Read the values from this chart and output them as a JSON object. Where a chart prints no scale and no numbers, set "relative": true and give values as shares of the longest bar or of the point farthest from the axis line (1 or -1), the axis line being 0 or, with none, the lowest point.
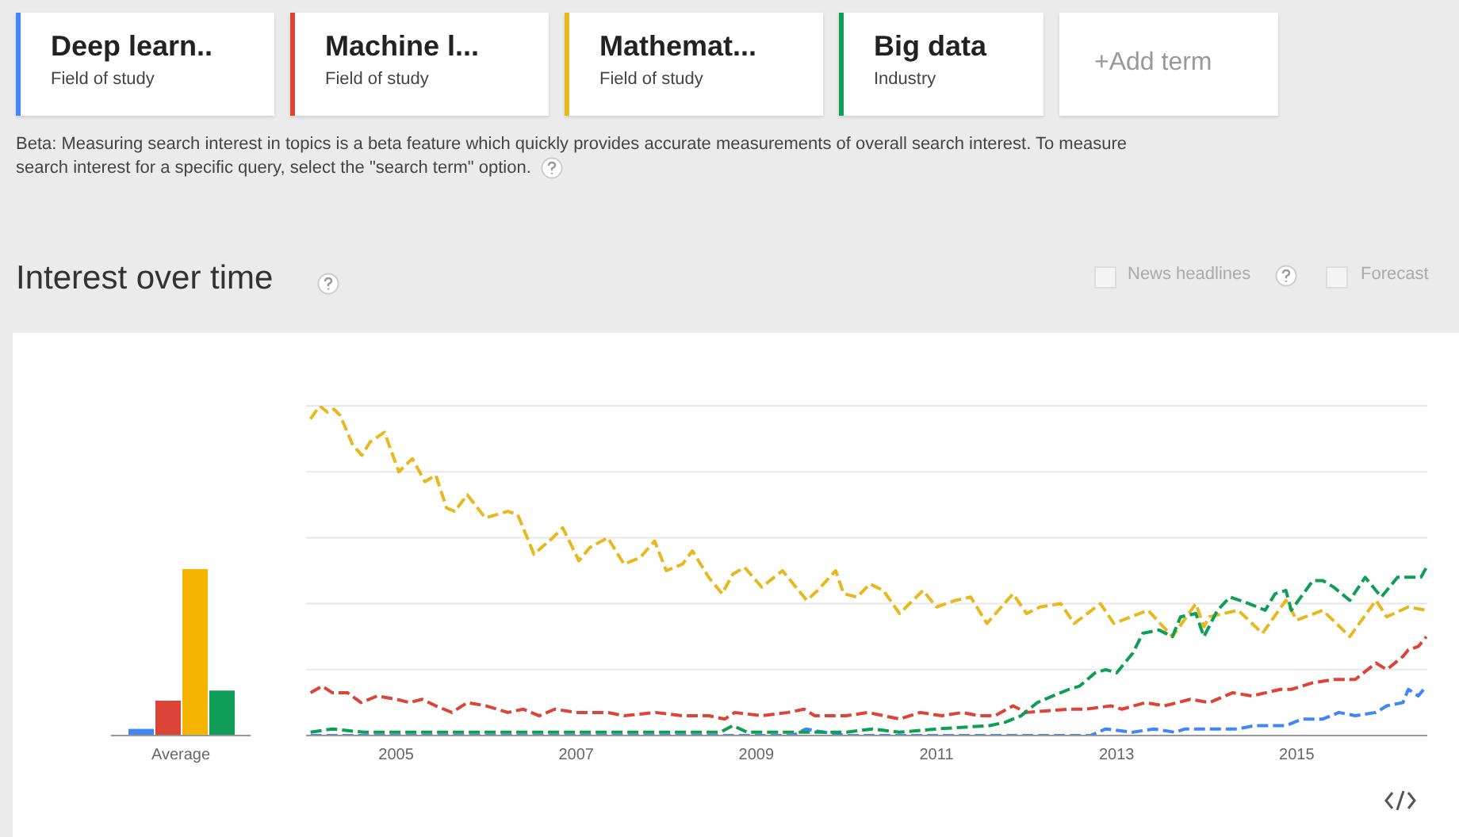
{
  "chart_data": [
    {
      "type": "other",
      "annotations": [
        "Deep learn..",
        "Field of study",
        "Machine l...",
        "Field of study",
        "Mathemat...",
        "Field of study",
        "Big data",
        "Industry",
        "+Add term",
        "Beta: Measuring search interest in topics is a beta feature which quickly provides accurate measurements of overall search interest. To measure search interest for a specific query, select the \"search term\" option."
      ]
    },
    {
      "type": "bar",
      "relative": true,
      "categories": [
        "Average"
      ],
      "legend": false,
      "grid": false,
      "series": [
        {
          "color": "#4285f4",
          "values": [
            0.04
          ]
        },
        {
          "color": "#db4437",
          "values": [
            0.21
          ]
        },
        {
          "color": "#f4b400",
          "values": [
            1
          ]
        },
        {
          "color": "#0f9d58",
          "values": [
            0.27
          ]
        }
      ]
    },
    {
      "type": "line",
      "title": "Interest over time",
      "annotations": [
        "News headlines",
        "Forecast"
      ],
      "relative": true,
      "grid": "y",
      "legend": false,
      "marker": "none",
      "line_style": "dashed",
      "xlim": [
        2004,
        2016.45
      ],
      "xticks": [
        2005,
        2007,
        2009,
        2011,
        2013,
        2015
      ],
      "series": [
        {
          "color": "#4285f4",
          "x": [
            2004.05,
            2009.4,
            2009.55,
            2009.75,
            2010.0,
            2012.71,
            2012.88,
            2013.18,
            2013.41,
            2013.65,
            2013.76,
            2014.35,
            2014.53,
            2014.88,
            2015.06,
            2015.29,
            2015.47,
            2015.65,
            2015.88,
            2016.0,
            2016.18,
            2016.24,
            2016.35,
            2016.44
          ],
          "values": [
            0,
            0,
            0.02,
            0.01,
            0,
            0,
            0.02,
            0.01,
            0.02,
            0.01,
            0.02,
            0.02,
            0.03,
            0.03,
            0.05,
            0.05,
            0.07,
            0.06,
            0.07,
            0.09,
            0.1,
            0.14,
            0.12,
            0.15
          ]
        },
        {
          "color": "#db4437",
          "x": [
            2004.05,
            2004.18,
            2004.29,
            2004.46,
            2004.61,
            2004.79,
            2005.0,
            2005.15,
            2005.29,
            2005.44,
            2005.62,
            2005.79,
            2006.0,
            2006.24,
            2006.41,
            2006.59,
            2006.76,
            2007.0,
            2007.35,
            2007.53,
            2007.88,
            2008.18,
            2008.47,
            2008.65,
            2008.76,
            2009.06,
            2009.35,
            2009.53,
            2009.65,
            2010.0,
            2010.24,
            2010.59,
            2010.82,
            2011.06,
            2011.29,
            2011.47,
            2011.65,
            2011.85,
            2012.0,
            2012.47,
            2012.65,
            2012.94,
            2013.06,
            2013.32,
            2013.53,
            2013.82,
            2014.03,
            2014.29,
            2014.5,
            2014.82,
            2014.94,
            2015.18,
            2015.41,
            2015.65,
            2015.88,
            2016.0,
            2016.18,
            2016.24,
            2016.35,
            2016.44
          ],
          "values": [
            0.13,
            0.15,
            0.13,
            0.13,
            0.1,
            0.12,
            0.11,
            0.1,
            0.11,
            0.09,
            0.07,
            0.1,
            0.09,
            0.07,
            0.08,
            0.06,
            0.08,
            0.07,
            0.07,
            0.06,
            0.07,
            0.06,
            0.06,
            0.05,
            0.07,
            0.06,
            0.07,
            0.08,
            0.06,
            0.06,
            0.07,
            0.05,
            0.07,
            0.06,
            0.07,
            0.06,
            0.06,
            0.09,
            0.07,
            0.08,
            0.08,
            0.09,
            0.08,
            0.1,
            0.09,
            0.11,
            0.1,
            0.13,
            0.12,
            0.14,
            0.14,
            0.16,
            0.17,
            0.17,
            0.22,
            0.2,
            0.24,
            0.26,
            0.27,
            0.3
          ]
        },
        {
          "color": "#e8b820",
          "x": [
            2004.05,
            2004.15,
            2004.24,
            2004.31,
            2004.38,
            2004.52,
            2004.62,
            2004.71,
            2004.87,
            2005.03,
            2005.18,
            2005.32,
            2005.44,
            2005.56,
            2005.65,
            2005.79,
            2005.99,
            2006.24,
            2006.35,
            2006.53,
            2006.74,
            2006.85,
            2007.03,
            2007.15,
            2007.35,
            2007.53,
            2007.71,
            2007.87,
            2008.0,
            2008.18,
            2008.29,
            2008.47,
            2008.62,
            2008.74,
            2008.87,
            2009.06,
            2009.29,
            2009.56,
            2009.68,
            2009.88,
            2009.97,
            2010.12,
            2010.26,
            2010.41,
            2010.59,
            2010.85,
            2011.0,
            2011.21,
            2011.38,
            2011.56,
            2011.85,
            2012.0,
            2012.15,
            2012.38,
            2012.53,
            2012.82,
            2012.97,
            2013.35,
            2013.62,
            2013.88,
            2013.97,
            2014.03,
            2014.35,
            2014.62,
            2014.88,
            2015.0,
            2015.29,
            2015.59,
            2015.88,
            2016.0,
            2016.24,
            2016.44
          ],
          "values": [
            0.96,
            1,
            0.98,
            0.99,
            0.97,
            0.88,
            0.85,
            0.89,
            0.92,
            0.8,
            0.84,
            0.77,
            0.79,
            0.69,
            0.68,
            0.73,
            0.66,
            0.68,
            0.67,
            0.55,
            0.6,
            0.63,
            0.53,
            0.57,
            0.6,
            0.52,
            0.54,
            0.59,
            0.5,
            0.52,
            0.56,
            0.48,
            0.43,
            0.49,
            0.51,
            0.45,
            0.5,
            0.41,
            0.44,
            0.5,
            0.43,
            0.42,
            0.46,
            0.44,
            0.37,
            0.44,
            0.39,
            0.41,
            0.42,
            0.34,
            0.43,
            0.37,
            0.39,
            0.4,
            0.34,
            0.4,
            0.34,
            0.38,
            0.3,
            0.4,
            0.33,
            0.36,
            0.38,
            0.31,
            0.41,
            0.35,
            0.38,
            0.3,
            0.41,
            0.36,
            0.39,
            0.38
          ]
        },
        {
          "color": "#0f9d58",
          "x": [
            2004.05,
            2004.29,
            2004.64,
            2005.0,
            2006.0,
            2007.0,
            2008.0,
            2008.6,
            2008.74,
            2008.9,
            2009.5,
            2010.0,
            2010.29,
            2010.59,
            2011.0,
            2011.59,
            2011.76,
            2011.94,
            2012.12,
            2012.29,
            2012.47,
            2012.59,
            2012.76,
            2012.88,
            2013.0,
            2013.18,
            2013.29,
            2013.47,
            2013.62,
            2013.71,
            2013.88,
            2013.97,
            2014.12,
            2014.26,
            2014.47,
            2014.65,
            2014.76,
            2014.88,
            2014.94,
            2015.18,
            2015.29,
            2015.41,
            2015.59,
            2015.76,
            2015.94,
            2016.12,
            2016.29,
            2016.38,
            2016.44
          ],
          "values": [
            0.01,
            0.02,
            0.01,
            0.01,
            0.01,
            0.01,
            0.01,
            0.01,
            0.03,
            0.01,
            0.01,
            0.01,
            0.02,
            0.01,
            0.02,
            0.03,
            0.04,
            0.06,
            0.1,
            0.12,
            0.14,
            0.15,
            0.19,
            0.2,
            0.19,
            0.25,
            0.31,
            0.32,
            0.3,
            0.36,
            0.37,
            0.3,
            0.38,
            0.42,
            0.4,
            0.38,
            0.43,
            0.44,
            0.38,
            0.47,
            0.47,
            0.45,
            0.41,
            0.48,
            0.42,
            0.48,
            0.48,
            0.48,
            0.51
          ]
        }
      ]
    }
  ]
}
